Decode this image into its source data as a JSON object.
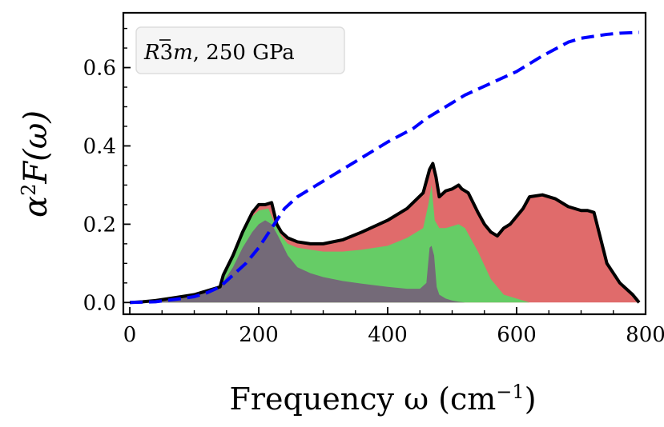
{
  "chart_data": {
    "type": "area",
    "title": "",
    "annotation": "R3̄m, 250 GPa",
    "annotation_parts": {
      "symbol_prefix": "R",
      "symbol_bar": "3",
      "symbol_suffix": "m",
      "rest": ", 250 GPa"
    },
    "xlabel": "Frequency ω (cm⁻¹)",
    "xlabel_parts": {
      "text": "Frequency ω (cm",
      "sup": "−1",
      "close": ")"
    },
    "ylabel": "α²F(ω)",
    "ylabel_parts": {
      "alpha": "α",
      "sup": "2",
      "rest": "F(ω)"
    },
    "xlim": [
      -10,
      800
    ],
    "ylim": [
      -0.03,
      0.74
    ],
    "xticks": [
      0,
      200,
      400,
      600,
      800
    ],
    "xtick_labels": [
      "0",
      "200",
      "400",
      "600",
      "800"
    ],
    "yticks": [
      0.0,
      0.2,
      0.4,
      0.6
    ],
    "ytick_labels": [
      "0.0",
      "0.2",
      "0.4",
      "0.6"
    ],
    "grid": false,
    "legend_position": "top-left",
    "colors": {
      "total_line": "#000000",
      "total_fill": "#e06b6b",
      "green_fill": "#66cc66",
      "gray_fill": "#746a78",
      "cumulative_line": "#0000ff"
    },
    "series": [
      {
        "name": "total",
        "style": "black line, red fill",
        "x": [
          0,
          20,
          40,
          60,
          80,
          100,
          120,
          140,
          145,
          160,
          175,
          190,
          200,
          210,
          220,
          228,
          235,
          245,
          260,
          280,
          300,
          330,
          360,
          400,
          430,
          455,
          465,
          470,
          475,
          480,
          490,
          500,
          510,
          515,
          525,
          540,
          550,
          560,
          570,
          575,
          580,
          590,
          600,
          610,
          620,
          640,
          660,
          680,
          700,
          710,
          720,
          740,
          760,
          780,
          790
        ],
        "y": [
          0,
          0.002,
          0.005,
          0.01,
          0.015,
          0.02,
          0.03,
          0.04,
          0.07,
          0.12,
          0.18,
          0.23,
          0.25,
          0.25,
          0.255,
          0.2,
          0.18,
          0.165,
          0.155,
          0.15,
          0.15,
          0.16,
          0.18,
          0.21,
          0.24,
          0.28,
          0.34,
          0.355,
          0.32,
          0.27,
          0.285,
          0.29,
          0.3,
          0.29,
          0.28,
          0.23,
          0.2,
          0.18,
          0.17,
          0.18,
          0.19,
          0.2,
          0.22,
          0.24,
          0.27,
          0.275,
          0.265,
          0.245,
          0.235,
          0.235,
          0.23,
          0.1,
          0.05,
          0.02,
          0.0
        ]
      },
      {
        "name": "green",
        "style": "green fill",
        "x": [
          0,
          40,
          80,
          120,
          140,
          160,
          175,
          190,
          200,
          215,
          225,
          235,
          245,
          260,
          280,
          300,
          330,
          360,
          400,
          430,
          455,
          463,
          468,
          473,
          480,
          490,
          500,
          510,
          520,
          540,
          560,
          580,
          600,
          620
        ],
        "y": [
          0,
          0.005,
          0.015,
          0.03,
          0.04,
          0.12,
          0.18,
          0.22,
          0.235,
          0.24,
          0.2,
          0.17,
          0.15,
          0.14,
          0.135,
          0.13,
          0.13,
          0.135,
          0.145,
          0.165,
          0.19,
          0.25,
          0.3,
          0.21,
          0.19,
          0.19,
          0.195,
          0.2,
          0.19,
          0.13,
          0.06,
          0.02,
          0.01,
          0.0
        ]
      },
      {
        "name": "gray",
        "style": "gray fill",
        "x": [
          0,
          40,
          80,
          120,
          140,
          160,
          175,
          190,
          200,
          210,
          220,
          230,
          245,
          260,
          280,
          300,
          330,
          360,
          400,
          430,
          450,
          460,
          465,
          468,
          472,
          476,
          480,
          490,
          500,
          510,
          520
        ],
        "y": [
          0,
          0.005,
          0.015,
          0.03,
          0.04,
          0.09,
          0.14,
          0.18,
          0.2,
          0.21,
          0.2,
          0.17,
          0.12,
          0.09,
          0.075,
          0.065,
          0.055,
          0.048,
          0.04,
          0.035,
          0.035,
          0.05,
          0.14,
          0.145,
          0.12,
          0.04,
          0.02,
          0.01,
          0.005,
          0.002,
          0.0
        ]
      },
      {
        "name": "cumulative",
        "style": "blue dashed line",
        "x": [
          0,
          40,
          80,
          100,
          120,
          140,
          160,
          180,
          200,
          220,
          240,
          260,
          280,
          300,
          330,
          360,
          400,
          440,
          460,
          480,
          500,
          520,
          560,
          600,
          640,
          680,
          700,
          720,
          740,
          760,
          790
        ],
        "y": [
          0,
          0.002,
          0.01,
          0.015,
          0.025,
          0.04,
          0.07,
          0.1,
          0.14,
          0.19,
          0.24,
          0.27,
          0.29,
          0.31,
          0.34,
          0.37,
          0.41,
          0.445,
          0.47,
          0.49,
          0.51,
          0.53,
          0.56,
          0.59,
          0.63,
          0.665,
          0.675,
          0.68,
          0.685,
          0.688,
          0.69
        ]
      }
    ]
  }
}
